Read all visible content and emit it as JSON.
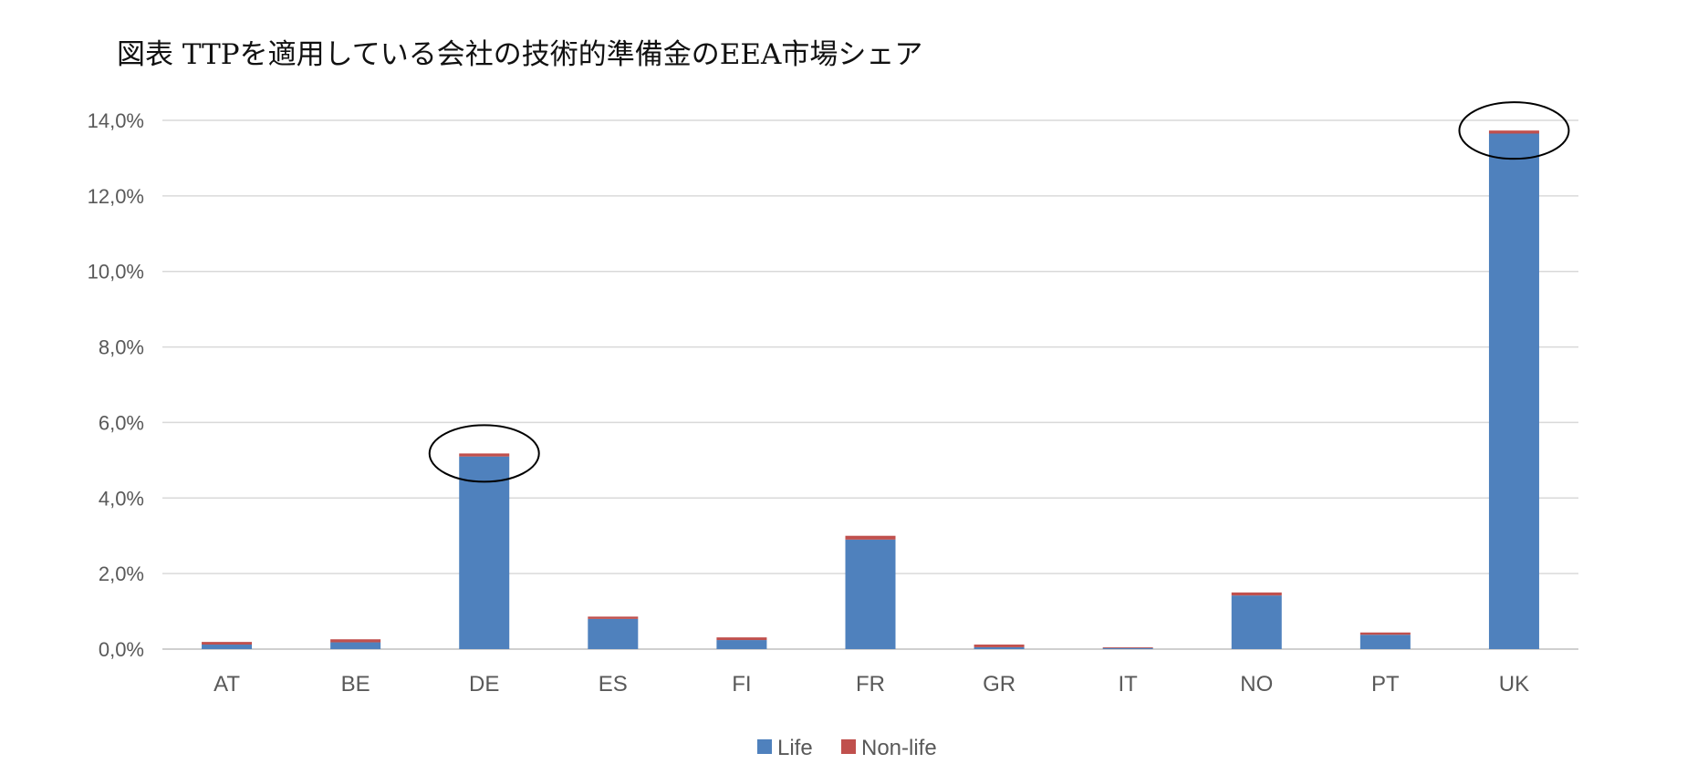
{
  "title": "図表 TTPを適用している会社の技術的準備金のEEA市場シェア",
  "chart_data": {
    "type": "bar",
    "stacked": true,
    "categories": [
      "AT",
      "BE",
      "DE",
      "ES",
      "FI",
      "FR",
      "GR",
      "IT",
      "NO",
      "PT",
      "UK"
    ],
    "series": [
      {
        "name": "Life",
        "color": "#4F81BD",
        "values": [
          0.12,
          0.18,
          5.1,
          0.8,
          0.24,
          2.9,
          0.05,
          0.03,
          1.42,
          0.38,
          13.65
        ]
      },
      {
        "name": "Non-life",
        "color": "#C0504D",
        "values": [
          0.07,
          0.08,
          0.08,
          0.06,
          0.07,
          0.1,
          0.07,
          0.02,
          0.08,
          0.06,
          0.08
        ]
      }
    ],
    "ylim": [
      0,
      14
    ],
    "yticks": [
      "0,0%",
      "2,0%",
      "4,0%",
      "6,0%",
      "8,0%",
      "10,0%",
      "12,0%",
      "14,0%"
    ],
    "grid": true,
    "legend_position": "bottom",
    "annotations": [
      {
        "type": "ellipse",
        "category": "DE"
      },
      {
        "type": "ellipse",
        "category": "UK"
      }
    ]
  }
}
